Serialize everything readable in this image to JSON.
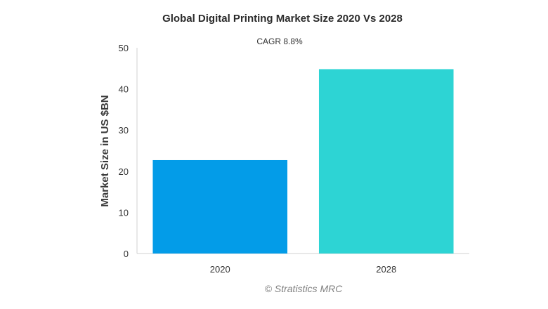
{
  "chart_data": {
    "type": "bar",
    "title": "Global Digital Printing Market Size 2020 Vs 2028",
    "subtitle": "CAGR 8.8%",
    "xlabel": "",
    "ylabel": "Market Size in US $BN",
    "categories": [
      "2020",
      "2028"
    ],
    "values": [
      22.7,
      44.8
    ],
    "colors": [
      "#039ce8",
      "#2dd4d4"
    ],
    "ylim": [
      0,
      50
    ],
    "yticks": [
      "0",
      "10",
      "20",
      "30",
      "40",
      "50"
    ],
    "grid": false,
    "legend": "none"
  },
  "credit": "© Stratistics MRC"
}
